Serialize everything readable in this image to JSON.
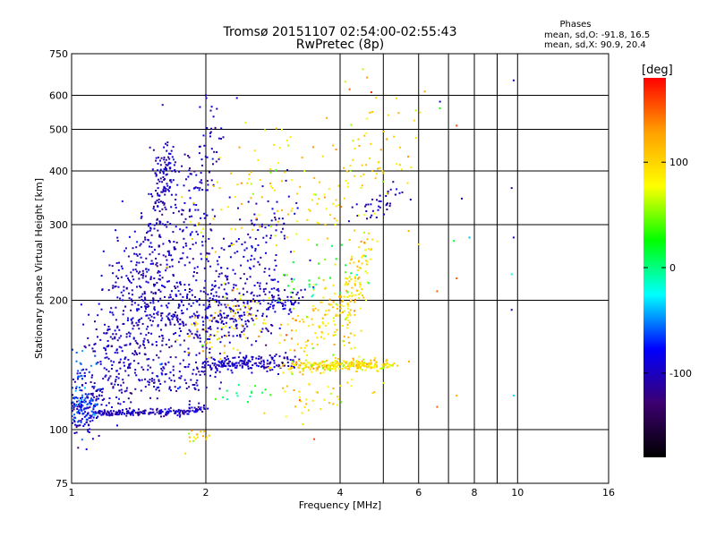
{
  "chart_data": {
    "type": "scatter",
    "title": "Tromsø 20151107 02:54:00-02:55:43",
    "subtitle": "RwPretec (8p)",
    "xlabel": "Frequency [MHz]",
    "ylabel": "Stationary phase Virtual Height [km]",
    "x_scale": "log",
    "y_scale": "log",
    "xlim": [
      1,
      16
    ],
    "ylim": [
      75,
      750
    ],
    "x_ticks": [
      1,
      2,
      4,
      6,
      8,
      10,
      16
    ],
    "x_minor_lines": [
      5,
      7,
      9
    ],
    "y_ticks": [
      75,
      100,
      200,
      300,
      400,
      500,
      600,
      750
    ],
    "grid": true,
    "stats": {
      "title": "Phases",
      "line1": "mean, sd,O: -91.8, 16.5",
      "line2": "mean, sd,X:  90.9, 20.4"
    },
    "colorbar": {
      "label": "[deg]",
      "range": [
        -180,
        180
      ],
      "ticks": [
        100,
        0,
        -100
      ],
      "colors": [
        "#000000",
        "#3c0070",
        "#0000ff",
        "#00ffff",
        "#00ff00",
        "#ffff00",
        "#ffa000",
        "#ff0000"
      ]
    },
    "series": [
      {
        "phase_mean": -100,
        "phase_sd": 12,
        "segments": [
          {
            "x0": 1.0,
            "x1": 1.1,
            "y0": 112,
            "y1": 104,
            "n": 70,
            "fs": 0.03,
            "hs": 0.05
          },
          {
            "x0": 1.0,
            "x1": 1.15,
            "y0": 130,
            "y1": 115,
            "n": 60,
            "fs": 0.04,
            "hs": 0.05
          },
          {
            "x0": 1.1,
            "x1": 1.8,
            "y0": 109,
            "y1": 110,
            "n": 160,
            "fs": 0.015,
            "hs": 0.01
          },
          {
            "x0": 1.8,
            "x1": 2.0,
            "y0": 110,
            "y1": 112,
            "n": 25,
            "fs": 0.01,
            "hs": 0.01
          },
          {
            "x0": 1.1,
            "x1": 2.0,
            "y0": 125,
            "y1": 135,
            "n": 180,
            "fs": 0.08,
            "hs": 0.07
          },
          {
            "x0": 1.15,
            "x1": 2.0,
            "y0": 150,
            "y1": 200,
            "n": 380,
            "fs": 0.08,
            "hs": 0.12
          },
          {
            "x0": 1.3,
            "x1": 1.8,
            "y0": 200,
            "y1": 300,
            "n": 260,
            "fs": 0.07,
            "hs": 0.12
          },
          {
            "x0": 1.55,
            "x1": 1.65,
            "y0": 330,
            "y1": 420,
            "n": 120,
            "fs": 0.03,
            "hs": 0.08
          },
          {
            "x0": 1.8,
            "x1": 2.1,
            "y0": 300,
            "y1": 520,
            "n": 90,
            "fs": 0.05,
            "hs": 0.1
          },
          {
            "x0": 2.0,
            "x1": 2.6,
            "y0": 140,
            "y1": 145,
            "n": 120,
            "fs": 0.05,
            "hs": 0.02
          },
          {
            "x0": 2.0,
            "x1": 2.9,
            "y0": 170,
            "y1": 220,
            "n": 230,
            "fs": 0.08,
            "hs": 0.1
          },
          {
            "x0": 2.0,
            "x1": 3.0,
            "y0": 220,
            "y1": 330,
            "n": 120,
            "fs": 0.08,
            "hs": 0.1
          },
          {
            "x0": 2.6,
            "x1": 3.1,
            "y0": 140,
            "y1": 145,
            "n": 60,
            "fs": 0.04,
            "hs": 0.02
          },
          {
            "x0": 2.8,
            "x1": 3.2,
            "y0": 195,
            "y1": 205,
            "n": 40,
            "fs": 0.04,
            "hs": 0.02
          },
          {
            "x0": 4.3,
            "x1": 5.5,
            "y0": 320,
            "y1": 350,
            "n": 40,
            "fs": 0.03,
            "hs": 0.03
          }
        ]
      },
      {
        "phase_mean": -60,
        "phase_sd": 10,
        "segments": [
          {
            "x0": 1.0,
            "x1": 1.1,
            "y0": 120,
            "y1": 108,
            "n": 60,
            "fs": 0.03,
            "hs": 0.05
          },
          {
            "x0": 1.0,
            "x1": 1.1,
            "y0": 140,
            "y1": 125,
            "n": 40,
            "fs": 0.04,
            "hs": 0.06
          }
        ]
      },
      {
        "phase_mean": 95,
        "phase_sd": 20,
        "segments": [
          {
            "x0": 1.9,
            "x1": 2.6,
            "y0": 160,
            "y1": 190,
            "n": 70,
            "fs": 0.06,
            "hs": 0.08
          },
          {
            "x0": 1.85,
            "x1": 1.95,
            "y0": 95,
            "y1": 98,
            "n": 15,
            "fs": 0.02,
            "hs": 0.02
          },
          {
            "x0": 2.0,
            "x1": 3.0,
            "y0": 250,
            "y1": 480,
            "n": 70,
            "fs": 0.1,
            "hs": 0.12
          },
          {
            "x0": 3.1,
            "x1": 4.8,
            "y0": 140,
            "y1": 142,
            "n": 220,
            "fs": 0.05,
            "hs": 0.015
          },
          {
            "x0": 3.1,
            "x1": 3.9,
            "y0": 160,
            "y1": 210,
            "n": 90,
            "fs": 0.06,
            "hs": 0.1
          },
          {
            "x0": 4.0,
            "x1": 4.6,
            "y0": 170,
            "y1": 270,
            "n": 140,
            "fs": 0.03,
            "hs": 0.1
          },
          {
            "x0": 4.4,
            "x1": 5.2,
            "y0": 140,
            "y1": 142,
            "n": 50,
            "fs": 0.04,
            "hs": 0.015
          },
          {
            "x0": 3.2,
            "x1": 5.5,
            "y0": 300,
            "y1": 520,
            "n": 110,
            "fs": 0.1,
            "hs": 0.12
          },
          {
            "x0": 3.0,
            "x1": 4.5,
            "y0": 110,
            "y1": 130,
            "n": 40,
            "fs": 0.1,
            "hs": 0.05
          }
        ]
      },
      {
        "phase_mean": 10,
        "phase_sd": 20,
        "segments": [
          {
            "x0": 3.0,
            "x1": 4.5,
            "y0": 210,
            "y1": 260,
            "n": 30,
            "fs": 0.1,
            "hs": 0.08
          },
          {
            "x0": 2.2,
            "x1": 2.8,
            "y0": 120,
            "y1": 125,
            "n": 15,
            "fs": 0.05,
            "hs": 0.03
          }
        ]
      }
    ],
    "outliers": [
      {
        "x": 6.7,
        "y": 580,
        "phase": -90
      },
      {
        "x": 6.7,
        "y": 560,
        "phase": 30
      },
      {
        "x": 7.3,
        "y": 510,
        "phase": 160
      },
      {
        "x": 7.5,
        "y": 345,
        "phase": -100
      },
      {
        "x": 7.2,
        "y": 275,
        "phase": 20
      },
      {
        "x": 7.3,
        "y": 225,
        "phase": 150
      },
      {
        "x": 6.6,
        "y": 210,
        "phase": 150
      },
      {
        "x": 7.8,
        "y": 280,
        "phase": -40
      },
      {
        "x": 9.7,
        "y": 365,
        "phase": -110
      },
      {
        "x": 9.8,
        "y": 280,
        "phase": -90
      },
      {
        "x": 9.7,
        "y": 230,
        "phase": -20
      },
      {
        "x": 9.7,
        "y": 190,
        "phase": -100
      },
      {
        "x": 9.8,
        "y": 120,
        "phase": -30
      },
      {
        "x": 9.8,
        "y": 650,
        "phase": -100
      },
      {
        "x": 6.6,
        "y": 113,
        "phase": 150
      },
      {
        "x": 7.3,
        "y": 120,
        "phase": 120
      },
      {
        "x": 1.08,
        "y": 90,
        "phase": -90
      },
      {
        "x": 1.8,
        "y": 88,
        "phase": 100
      },
      {
        "x": 2.0,
        "y": 95,
        "phase": 110
      },
      {
        "x": 3.3,
        "y": 103,
        "phase": 100
      },
      {
        "x": 3.5,
        "y": 95,
        "phase": 160
      },
      {
        "x": 4.2,
        "y": 620,
        "phase": 150
      },
      {
        "x": 4.6,
        "y": 660,
        "phase": 130
      },
      {
        "x": 4.7,
        "y": 610,
        "phase": 170
      },
      {
        "x": 5.7,
        "y": 290,
        "phase": 120
      },
      {
        "x": 6.0,
        "y": 270,
        "phase": 100
      },
      {
        "x": 1.6,
        "y": 570,
        "phase": -100
      },
      {
        "x": 2.0,
        "y": 600,
        "phase": -90
      },
      {
        "x": 1.3,
        "y": 340,
        "phase": -90
      },
      {
        "x": 4.5,
        "y": 690,
        "phase": 60
      }
    ]
  }
}
